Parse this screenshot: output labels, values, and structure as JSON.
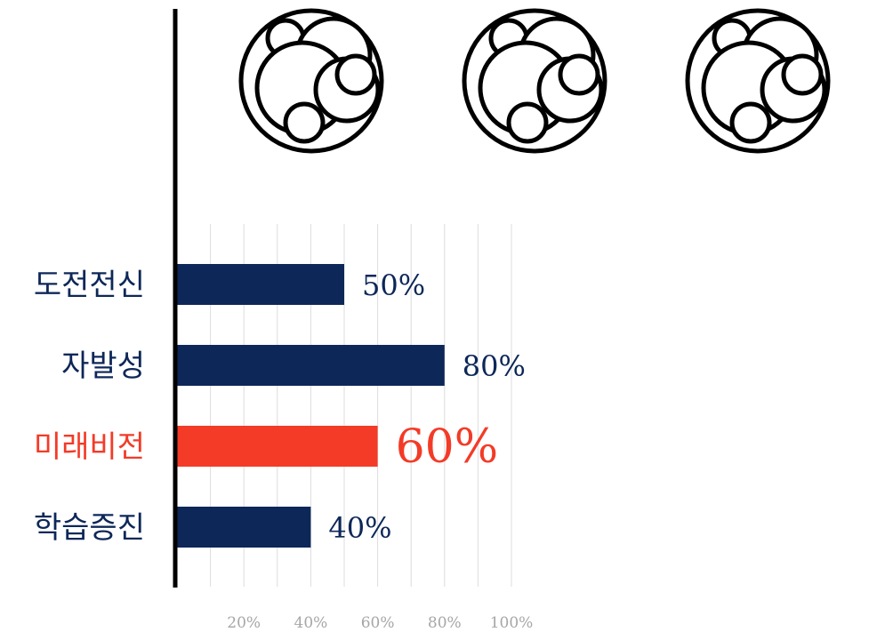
{
  "chart_data": {
    "type": "bar",
    "orientation": "horizontal",
    "categories": [
      "도전전신",
      "자발성",
      "미래비전",
      "학습증진"
    ],
    "values": [
      50,
      80,
      60,
      40
    ],
    "value_labels": [
      "50%",
      "80%",
      "60%",
      "40%"
    ],
    "highlight_index": 2,
    "x_ticks": [
      "20%",
      "40%",
      "60%",
      "80%",
      "100%"
    ],
    "xlim": [
      0,
      100
    ],
    "grid": true,
    "colors": {
      "bar": "#0d2758",
      "highlight": "#f33b27",
      "grid": "#dcdcdc",
      "tick": "#a6a6a6",
      "axis": "#000000"
    }
  },
  "decorations": {
    "icon_name": "bubble-cluster-icon",
    "icon_count": 3
  }
}
